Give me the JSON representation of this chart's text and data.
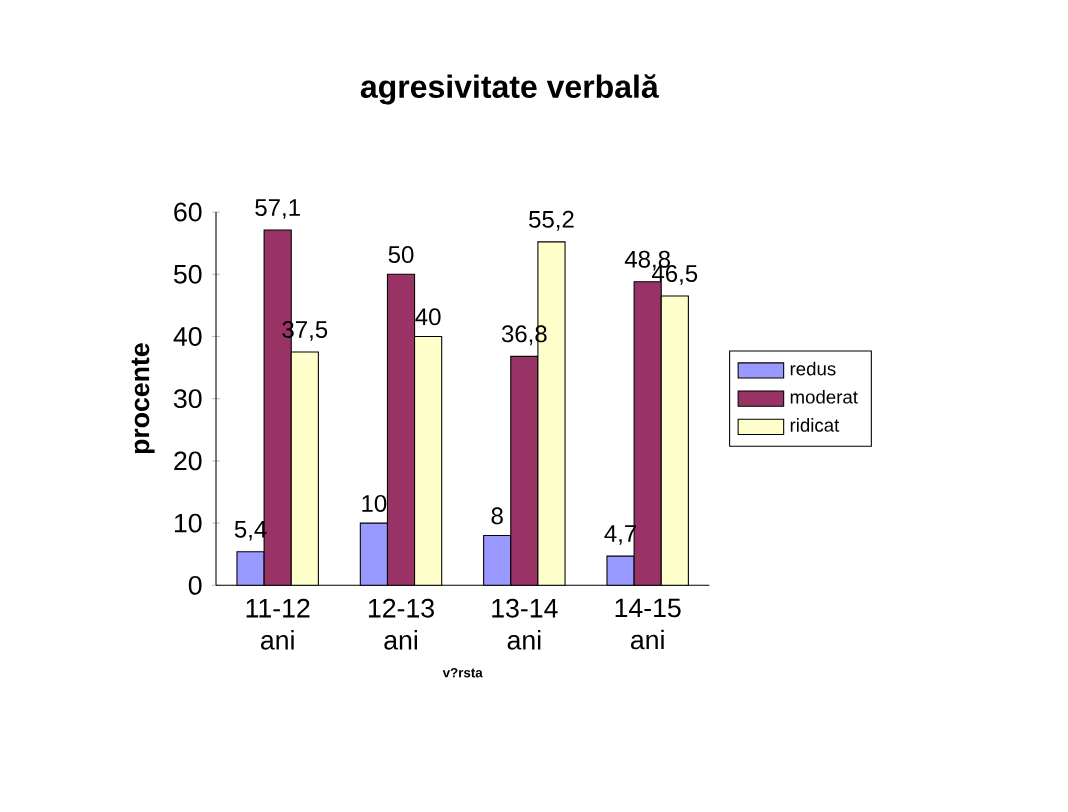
{
  "chart_data": {
    "type": "bar",
    "title": "agresivitate verbală",
    "xlabel": "v?rsta",
    "ylabel": "procente",
    "categories": [
      "11-12 ani",
      "12-13 ani",
      "13-14 ani",
      "14-15 ani"
    ],
    "series": [
      {
        "name": "redus",
        "color": "#9999ff",
        "values": [
          5.4,
          10,
          8,
          4.7
        ],
        "value_labels": [
          "5,4",
          "10",
          "8",
          "4,7"
        ]
      },
      {
        "name": "moderat",
        "color": "#993366",
        "values": [
          57.1,
          50,
          36.8,
          48.8
        ],
        "value_labels": [
          "57,1",
          "50",
          "36,8",
          "48,8"
        ]
      },
      {
        "name": "ridicat",
        "color": "#ffffcc",
        "values": [
          37.5,
          40,
          55.2,
          46.5
        ],
        "value_labels": [
          "37,5",
          "40",
          "55,2",
          "46,5"
        ]
      }
    ],
    "ylim": [
      0,
      60
    ],
    "yticks": [
      0,
      10,
      20,
      30,
      40,
      50,
      60
    ],
    "legend": "right"
  }
}
